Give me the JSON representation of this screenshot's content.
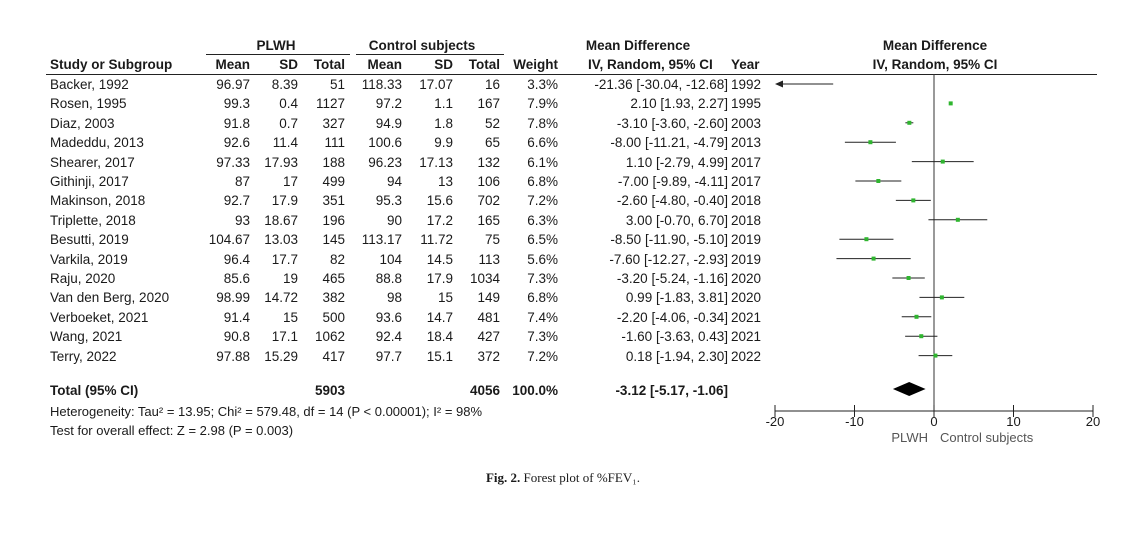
{
  "header": {
    "group1": "PLWH",
    "group2": "Control subjects",
    "md_group": "Mean Difference",
    "plot_group": "Mean Difference",
    "study": "Study or Subgroup",
    "mean1": "Mean",
    "sd1": "SD",
    "total1": "Total",
    "mean2": "Mean",
    "sd2": "SD",
    "total2": "Total",
    "weight": "Weight",
    "md_method": "IV, Random, 95% CI",
    "year": "Year",
    "plot_method": "IV, Random, 95% CI"
  },
  "chart_data": {
    "type": "forest",
    "xlim": [
      -20,
      20
    ],
    "xticks": [
      -20,
      -10,
      0,
      10,
      20
    ],
    "xtick_labels": [
      "-20",
      "-10",
      "0",
      "10",
      "20"
    ],
    "left_label": "PLWH",
    "right_label": "Control subjects",
    "point_color": "#2fb52f",
    "studies": [
      {
        "study": "Backer, 1992",
        "mean1": "96.97",
        "sd1": "8.39",
        "total1": "51",
        "mean2": "118.33",
        "sd2": "17.07",
        "total2": "16",
        "weight": "3.3%",
        "ci_text": "-21.36 [-30.04, -12.68]",
        "year": "1992",
        "md": -21.36,
        "lo": -30.04,
        "hi": -12.68
      },
      {
        "study": "Rosen, 1995",
        "mean1": "99.3",
        "sd1": "0.4",
        "total1": "1127",
        "mean2": "97.2",
        "sd2": "1.1",
        "total2": "167",
        "weight": "7.9%",
        "ci_text": "2.10 [1.93, 2.27]",
        "year": "1995",
        "md": 2.1,
        "lo": 1.93,
        "hi": 2.27
      },
      {
        "study": "Diaz, 2003",
        "mean1": "91.8",
        "sd1": "0.7",
        "total1": "327",
        "mean2": "94.9",
        "sd2": "1.8",
        "total2": "52",
        "weight": "7.8%",
        "ci_text": "-3.10 [-3.60, -2.60]",
        "year": "2003",
        "md": -3.1,
        "lo": -3.6,
        "hi": -2.6
      },
      {
        "study": "Madeddu, 2013",
        "mean1": "92.6",
        "sd1": "11.4",
        "total1": "111",
        "mean2": "100.6",
        "sd2": "9.9",
        "total2": "65",
        "weight": "6.6%",
        "ci_text": "-8.00 [-11.21, -4.79]",
        "year": "2013",
        "md": -8.0,
        "lo": -11.21,
        "hi": -4.79
      },
      {
        "study": "Shearer, 2017",
        "mean1": "97.33",
        "sd1": "17.93",
        "total1": "188",
        "mean2": "96.23",
        "sd2": "17.13",
        "total2": "132",
        "weight": "6.1%",
        "ci_text": "1.10 [-2.79, 4.99]",
        "year": "2017",
        "md": 1.1,
        "lo": -2.79,
        "hi": 4.99
      },
      {
        "study": "Githinji, 2017",
        "mean1": "87",
        "sd1": "17",
        "total1": "499",
        "mean2": "94",
        "sd2": "13",
        "total2": "106",
        "weight": "6.8%",
        "ci_text": "-7.00 [-9.89, -4.11]",
        "year": "2017",
        "md": -7.0,
        "lo": -9.89,
        "hi": -4.11
      },
      {
        "study": "Makinson, 2018",
        "mean1": "92.7",
        "sd1": "17.9",
        "total1": "351",
        "mean2": "95.3",
        "sd2": "15.6",
        "total2": "702",
        "weight": "7.2%",
        "ci_text": "-2.60 [-4.80, -0.40]",
        "year": "2018",
        "md": -2.6,
        "lo": -4.8,
        "hi": -0.4
      },
      {
        "study": "Triplette, 2018",
        "mean1": "93",
        "sd1": "18.67",
        "total1": "196",
        "mean2": "90",
        "sd2": "17.2",
        "total2": "165",
        "weight": "6.3%",
        "ci_text": "3.00 [-0.70, 6.70]",
        "year": "2018",
        "md": 3.0,
        "lo": -0.7,
        "hi": 6.7
      },
      {
        "study": "Besutti, 2019",
        "mean1": "104.67",
        "sd1": "13.03",
        "total1": "145",
        "mean2": "113.17",
        "sd2": "11.72",
        "total2": "75",
        "weight": "6.5%",
        "ci_text": "-8.50 [-11.90, -5.10]",
        "year": "2019",
        "md": -8.5,
        "lo": -11.9,
        "hi": -5.1
      },
      {
        "study": "Varkila, 2019",
        "mean1": "96.4",
        "sd1": "17.7",
        "total1": "82",
        "mean2": "104",
        "sd2": "14.5",
        "total2": "113",
        "weight": "5.6%",
        "ci_text": "-7.60 [-12.27, -2.93]",
        "year": "2019",
        "md": -7.6,
        "lo": -12.27,
        "hi": -2.93
      },
      {
        "study": "Raju, 2020",
        "mean1": "85.6",
        "sd1": "19",
        "total1": "465",
        "mean2": "88.8",
        "sd2": "17.9",
        "total2": "1034",
        "weight": "7.3%",
        "ci_text": "-3.20 [-5.24, -1.16]",
        "year": "2020",
        "md": -3.2,
        "lo": -5.24,
        "hi": -1.16
      },
      {
        "study": "Van den Berg, 2020",
        "mean1": "98.99",
        "sd1": "14.72",
        "total1": "382",
        "mean2": "98",
        "sd2": "15",
        "total2": "149",
        "weight": "6.8%",
        "ci_text": "0.99 [-1.83, 3.81]",
        "year": "2020",
        "md": 0.99,
        "lo": -1.83,
        "hi": 3.81
      },
      {
        "study": "Verboeket, 2021",
        "mean1": "91.4",
        "sd1": "15",
        "total1": "500",
        "mean2": "93.6",
        "sd2": "14.7",
        "total2": "481",
        "weight": "7.4%",
        "ci_text": "-2.20 [-4.06, -0.34]",
        "year": "2021",
        "md": -2.2,
        "lo": -4.06,
        "hi": -0.34
      },
      {
        "study": "Wang, 2021",
        "mean1": "90.8",
        "sd1": "17.1",
        "total1": "1062",
        "mean2": "92.4",
        "sd2": "18.4",
        "total2": "427",
        "weight": "7.3%",
        "ci_text": "-1.60 [-3.63, 0.43]",
        "year": "2021",
        "md": -1.6,
        "lo": -3.63,
        "hi": 0.43
      },
      {
        "study": "Terry, 2022",
        "mean1": "97.88",
        "sd1": "15.29",
        "total1": "417",
        "mean2": "97.7",
        "sd2": "15.1",
        "total2": "372",
        "weight": "7.2%",
        "ci_text": "0.18 [-1.94, 2.30]",
        "year": "2022",
        "md": 0.18,
        "lo": -1.94,
        "hi": 2.3
      }
    ],
    "total": {
      "label": "Total (95% CI)",
      "total1": "5903",
      "total2": "4056",
      "weight": "100.0%",
      "ci_text": "-3.12 [-5.17, -1.06]",
      "md": -3.12,
      "lo": -5.17,
      "hi": -1.06
    }
  },
  "footer": {
    "heterogeneity": "Heterogeneity: Tau² = 13.95; Chi² = 579.48, df = 14 (P < 0.00001); I² = 98%",
    "overall": "Test for overall effect: Z = 2.98 (P = 0.003)"
  },
  "caption": {
    "label": "Fig. 2.",
    "text": "Forest plot of %FEV₁."
  }
}
